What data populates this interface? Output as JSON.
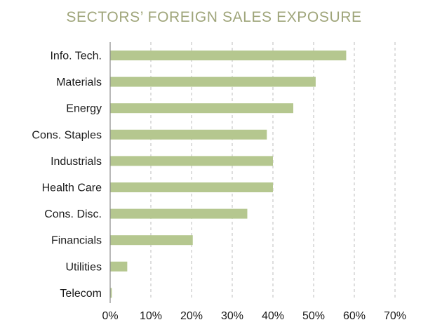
{
  "chart_data": {
    "type": "bar",
    "orientation": "horizontal",
    "title": "SECTORS’ FOREIGN SALES EXPOSURE",
    "xlabel": "",
    "ylabel": "",
    "categories": [
      "Info. Tech.",
      "Materials",
      "Energy",
      "Cons. Staples",
      "Industrials",
      "Health Care",
      "Cons. Disc.",
      "Financials",
      "Utilities",
      "Telecom"
    ],
    "values": [
      58,
      50.5,
      45,
      38.5,
      40,
      40,
      33.7,
      20.3,
      4.2,
      0.4
    ],
    "unit": "%",
    "xlim": [
      0,
      70
    ],
    "xticks": [
      "0%",
      "10%",
      "20%",
      "30%",
      "40%",
      "50%",
      "60%",
      "70%"
    ],
    "grid": "vertical dashed",
    "colors": {
      "bar": "#b5c78f",
      "title": "#9fa57a",
      "grid": "#bdbdbd",
      "axis": "#8a8a8a"
    }
  }
}
